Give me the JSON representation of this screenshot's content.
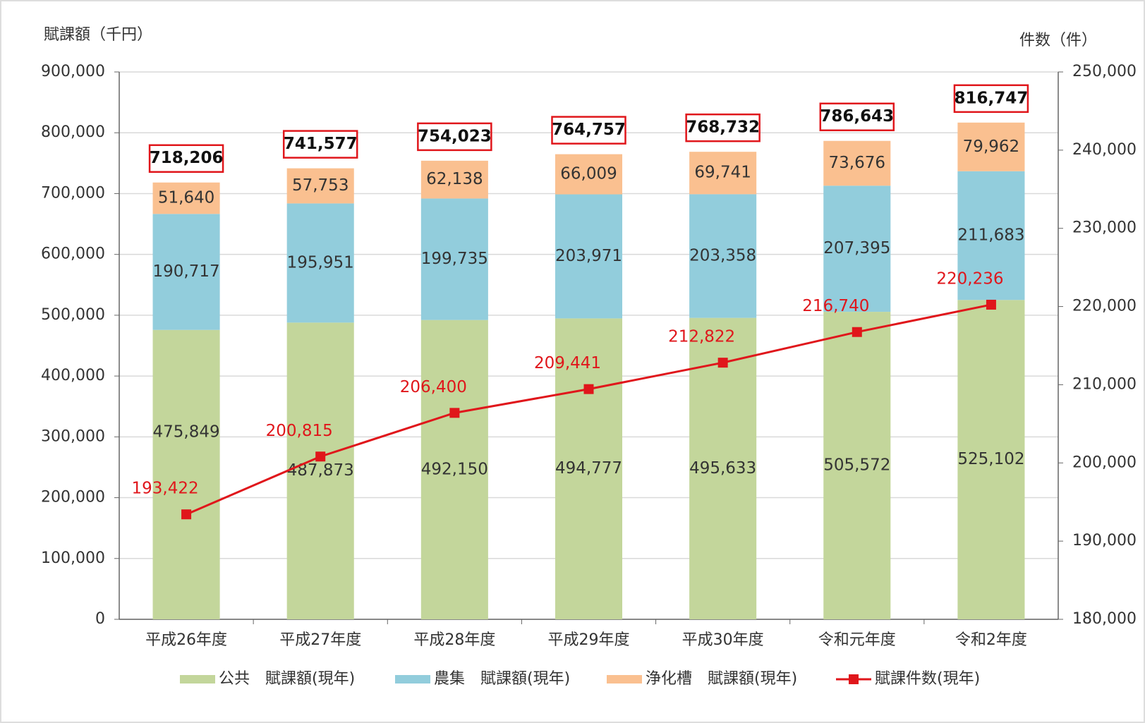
{
  "chart_data": {
    "type": "bar",
    "stacked": true,
    "y_label": "賦課額（千円）",
    "y2_label": "件数（件）",
    "categories": [
      "平成26年度",
      "平成27年度",
      "平成28年度",
      "平成29年度",
      "平成30年度",
      "令和元年度",
      "令和2年度"
    ],
    "series": [
      {
        "name": "公共　賦課額(現年)",
        "color": "#c3d69b",
        "values": [
          475849,
          487873,
          492150,
          494777,
          495633,
          505572,
          525102
        ],
        "value_labels": [
          "475,849",
          "487,873",
          "492,150",
          "494,777",
          "495,633",
          "505,572",
          "525,102"
        ]
      },
      {
        "name": "農集　賦課額(現年)",
        "color": "#92cddc",
        "values": [
          190717,
          195951,
          199735,
          203971,
          203358,
          207395,
          211683
        ],
        "value_labels": [
          "190,717",
          "195,951",
          "199,735",
          "203,971",
          "203,358",
          "207,395",
          "211,683"
        ]
      },
      {
        "name": "浄化槽　賦課額(現年)",
        "color": "#fac090",
        "values": [
          51640,
          57753,
          62138,
          66009,
          69741,
          73676,
          79962
        ],
        "value_labels": [
          "51,640",
          "57,753",
          "62,138",
          "66,009",
          "69,741",
          "73,676",
          "79,962"
        ]
      },
      {
        "name": "賦課件数(現年)",
        "color": "#e0161b",
        "axis": "y2",
        "type": "line",
        "values": [
          193422,
          200815,
          206400,
          209441,
          212822,
          216740,
          220236
        ],
        "value_labels": [
          "193,422",
          "200,815",
          "206,400",
          "209,441",
          "212,822",
          "216,740",
          "220,236"
        ]
      }
    ],
    "totals": {
      "values": [
        718206,
        741577,
        754023,
        764757,
        768732,
        786643,
        816747
      ],
      "value_labels": [
        "718,206",
        "741,577",
        "754,023",
        "764,757",
        "768,732",
        "786,643",
        "816,747"
      ]
    },
    "ylim": [
      0,
      900000
    ],
    "yticks": [
      0,
      {
        "value": 100000,
        "label": "100,000"
      },
      {
        "value": 200000,
        "label": "200,000"
      },
      {
        "value": 300000,
        "label": "300,000"
      },
      {
        "value": 400000,
        "label": "400,000"
      },
      {
        "value": 500000,
        "label": "500,000"
      },
      {
        "value": 600000,
        "label": "600,000"
      },
      {
        "value": 700000,
        "label": "700,000"
      },
      {
        "value": 800000,
        "label": "800,000"
      },
      {
        "value": 900000,
        "label": "900,000"
      }
    ],
    "y2lim": [
      180000,
      250000
    ],
    "y2ticks": [
      {
        "value": 180000,
        "label": "180,000"
      },
      {
        "value": 190000,
        "label": "190,000"
      },
      {
        "value": 200000,
        "label": "200,000"
      },
      {
        "value": 210000,
        "label": "210,000"
      },
      {
        "value": 220000,
        "label": "220,000"
      },
      {
        "value": 230000,
        "label": "230,000"
      },
      {
        "value": 240000,
        "label": "240,000"
      },
      {
        "value": 250000,
        "label": "250,000"
      }
    ],
    "grid": true,
    "legend": "bottom"
  }
}
